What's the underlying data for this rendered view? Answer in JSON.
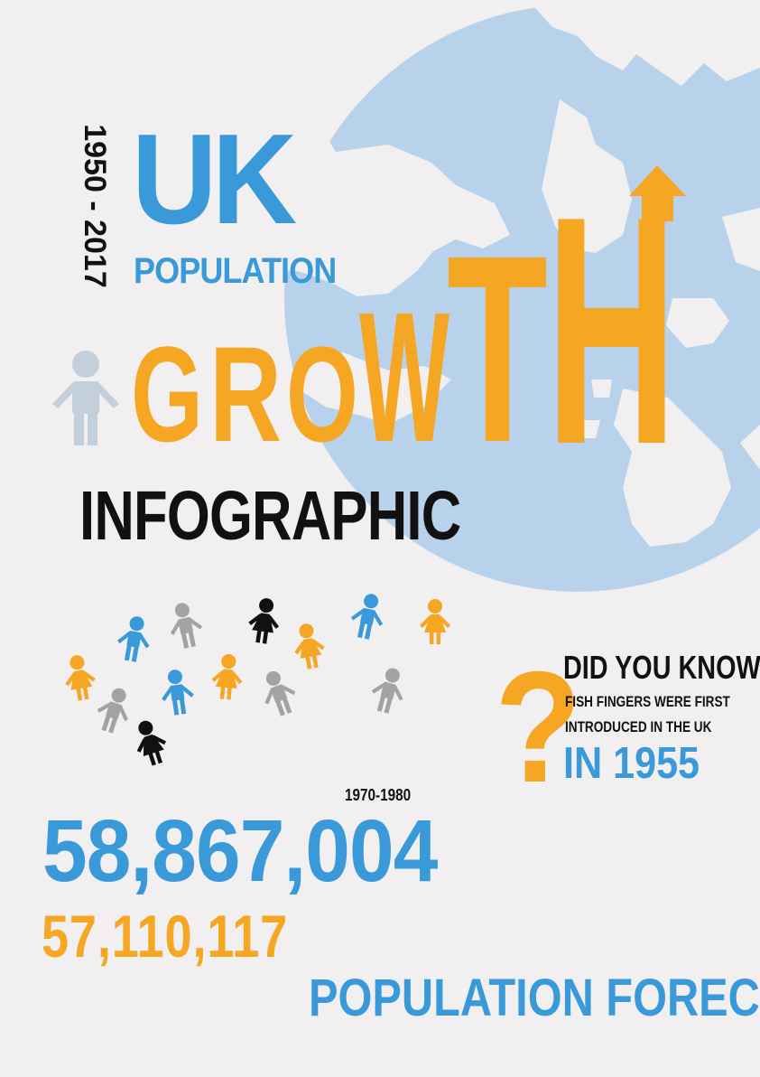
{
  "header": {
    "years": "1950 - 2017",
    "country": "UK",
    "subject": "POPULATION",
    "headline": "GROWTH",
    "headline_letters": [
      "G",
      "R",
      "O",
      "W",
      "T",
      "H"
    ],
    "kind": "INFOGRAPHIC"
  },
  "fact": {
    "question_mark": "?",
    "heading": "DID YOU KNOW",
    "line1": "FISH FINGERS WERE FIRST",
    "line2": "INTRODUCED IN THE UK",
    "year": "IN 1955"
  },
  "stats": {
    "period": "1970-1980",
    "population_blue": "58,867,004",
    "population_orange": "57,110,117",
    "forecast_label": "POPULATION FORECAST"
  },
  "colors": {
    "background": "#f1efef",
    "blue": "#3a9ad9",
    "orange": "#f5a623",
    "globe": "#b9d2ec",
    "grey": "#a3a3a3",
    "black": "#111111",
    "pale_figure": "#c3d0dc"
  },
  "icons": [
    "globe-icon",
    "person-icon",
    "up-arrow-icon"
  ]
}
